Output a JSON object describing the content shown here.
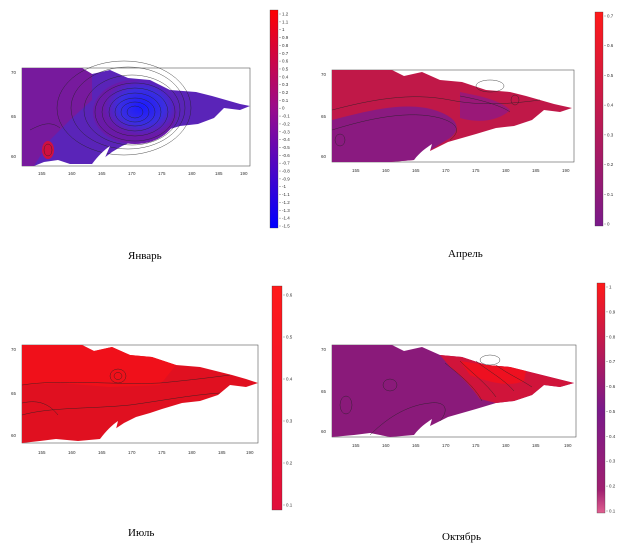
{
  "panels": [
    {
      "id": "jan",
      "caption": "Январь",
      "x_ticks": [
        "155",
        "160",
        "165",
        "170",
        "175",
        "180",
        "185",
        "190"
      ],
      "y_ticks": [
        "70",
        "65",
        "60"
      ],
      "colorbar_ticks": [
        "1.2",
        "1.1",
        "1",
        "0.9",
        "0.8",
        "0.7",
        "0.6",
        "0.5",
        "0.4",
        "0.3",
        "0.2",
        "0.1",
        "0",
        "-0.1",
        "-0.2",
        "-0.3",
        "-0.4",
        "-0.5",
        "-0.6",
        "-0.7",
        "-0.8",
        "-0.9",
        "-1",
        "-1.1",
        "-1.2",
        "-1.3",
        "-1.4",
        "-1.5"
      ],
      "colorbar_colors": [
        "#ff0000",
        "#aa0080",
        "#0000ff"
      ]
    },
    {
      "id": "apr",
      "caption": "Апрель",
      "x_ticks": [
        "155",
        "160",
        "165",
        "170",
        "175",
        "180",
        "185",
        "190"
      ],
      "y_ticks": [
        "70",
        "65",
        "60"
      ],
      "colorbar_ticks": [
        "0.7",
        "0.6",
        "0.5",
        "0.4",
        "0.3",
        "0.2",
        "0.1",
        "0"
      ],
      "colorbar_colors": [
        "#ff1a1a",
        "#7a1a8a"
      ]
    },
    {
      "id": "jul",
      "caption": "Июль",
      "x_ticks": [
        "155",
        "160",
        "165",
        "170",
        "175",
        "180",
        "185",
        "190"
      ],
      "y_ticks": [
        "70",
        "65",
        "60"
      ],
      "colorbar_ticks": [
        "0.6",
        "0.5",
        "0.4",
        "0.3",
        "0.2",
        "0.1"
      ],
      "colorbar_colors": [
        "#ff1a1a",
        "#e0103c"
      ]
    },
    {
      "id": "oct",
      "caption": "Октябрь",
      "x_ticks": [
        "155",
        "160",
        "165",
        "170",
        "175",
        "180",
        "185",
        "190"
      ],
      "y_ticks": [
        "70",
        "65",
        "60"
      ],
      "colorbar_ticks": [
        "1",
        "0.9",
        "0.8",
        "0.7",
        "0.6",
        "0.5",
        "0.4",
        "0.3",
        "0.2",
        "0.1"
      ],
      "colorbar_colors": [
        "#ff1a1a",
        "#7a1a8a",
        "#e06090"
      ]
    }
  ]
}
